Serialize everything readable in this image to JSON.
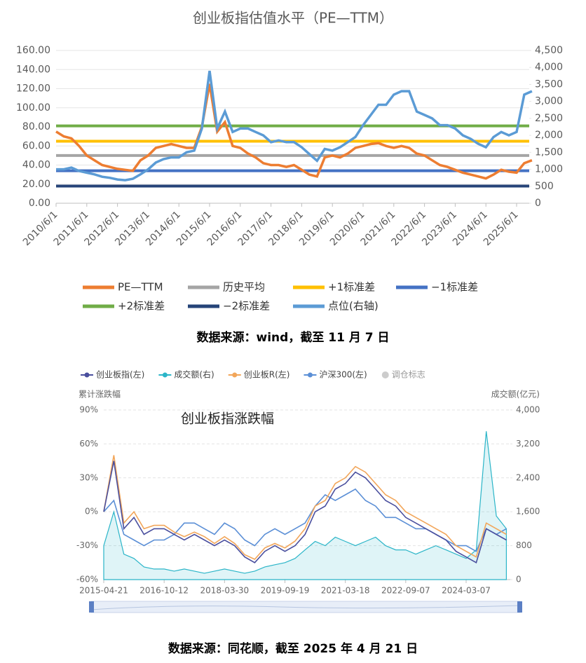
{
  "chart_data": [
    {
      "type": "line",
      "title": "创业板指估值水平（PE—TTM）",
      "source": "数据来源：wind，截至 11 月 7 日",
      "categories": [
        "2010/6/1",
        null,
        null,
        null,
        "2011/6/1",
        null,
        null,
        null,
        "2012/6/1",
        null,
        null,
        null,
        "2013/6/1",
        null,
        null,
        null,
        "2014/6/1",
        null,
        null,
        null,
        "2015/6/1",
        null,
        null,
        null,
        "2016/6/1",
        null,
        null,
        null,
        "2017/6/1",
        null,
        null,
        null,
        "2018/6/1",
        null,
        null,
        null,
        "2019/6/1",
        null,
        null,
        null,
        "2020/6/1",
        null,
        null,
        null,
        "2021/6/1",
        null,
        null,
        null,
        "2022/6/1",
        null,
        null,
        null,
        "2023/6/1",
        null,
        null,
        null,
        "2024/6/1",
        null,
        null,
        null,
        "2025/6/1",
        null,
        null
      ],
      "ylim": [
        0,
        160
      ],
      "yticks": [
        {
          "value": 0,
          "label": "0.00"
        },
        {
          "value": 20,
          "label": "20.00"
        },
        {
          "value": 40,
          "label": "40.00"
        },
        {
          "value": 60,
          "label": "60.00"
        },
        {
          "value": 80,
          "label": "80.00"
        },
        {
          "value": 100,
          "label": "100.00"
        },
        {
          "value": 120,
          "label": "120.00"
        },
        {
          "value": 140,
          "label": "140.00"
        },
        {
          "value": 160,
          "label": "160.00"
        }
      ],
      "y2lim": [
        0,
        4500
      ],
      "y2ticks": [
        0,
        500,
        {
          "value": 1000,
          "label": "1,000"
        },
        {
          "value": 1500,
          "label": "1,500"
        },
        {
          "value": 2000,
          "label": "2,000"
        },
        {
          "value": 2500,
          "label": "2,500"
        },
        {
          "value": 3000,
          "label": "3,000"
        },
        {
          "value": 3500,
          "label": "3,500"
        },
        {
          "value": 4000,
          "label": "4,000"
        },
        {
          "value": 4500,
          "label": "4,500"
        }
      ],
      "series": [
        {
          "name": "PE—TTM",
          "color": "#ed7d31",
          "values": [
            75,
            70,
            68,
            60,
            50,
            45,
            40,
            38,
            36,
            35,
            34,
            45,
            50,
            58,
            60,
            62,
            60,
            58,
            58,
            80,
            125,
            75,
            85,
            60,
            58,
            52,
            48,
            42,
            40,
            40,
            38,
            40,
            35,
            30,
            28,
            48,
            50,
            48,
            52,
            58,
            60,
            62,
            63,
            60,
            58,
            60,
            58,
            52,
            50,
            45,
            40,
            38,
            35,
            32,
            30,
            28,
            26,
            30,
            35,
            33,
            32,
            42,
            45
          ]
        },
        {
          "name": "历史平均",
          "color": "#a5a5a5",
          "value": 50
        },
        {
          "name": "+1标准差",
          "color": "#ffc000",
          "value": 65
        },
        {
          "name": "−1标准差",
          "color": "#4472c4",
          "value": 34
        },
        {
          "name": "+2标准差",
          "color": "#70ad47",
          "value": 81
        },
        {
          "name": "−2标准差",
          "color": "#264478",
          "value": 18
        },
        {
          "name": "点位(右轴)",
          "color": "#5b9bd5",
          "axis": "y2",
          "values": [
            1000,
            1000,
            1050,
            950,
            900,
            850,
            780,
            750,
            700,
            680,
            720,
            850,
            1000,
            1200,
            1300,
            1350,
            1350,
            1500,
            1550,
            2200,
            3900,
            2200,
            2700,
            2100,
            2200,
            2200,
            2100,
            2000,
            1800,
            1850,
            1800,
            1800,
            1650,
            1450,
            1250,
            1600,
            1550,
            1650,
            1800,
            1950,
            2300,
            2600,
            2900,
            2900,
            3200,
            3300,
            3300,
            2700,
            2600,
            2500,
            2300,
            2300,
            2200,
            2000,
            1900,
            1750,
            1650,
            1950,
            2100,
            2000,
            2100,
            3200,
            3300
          ]
        }
      ]
    },
    {
      "type": "line",
      "title": "创业板指涨跌幅",
      "source": "数据来源：同花顺，截至 2025 年 4 月 21 日",
      "ylabel": "累计涨跌幅",
      "y2label": "成交额(亿元)",
      "categories": [
        "2015-04-21",
        null,
        null,
        null,
        null,
        null,
        "2016-10-12",
        null,
        null,
        null,
        null,
        null,
        "2018-03-30",
        null,
        null,
        null,
        null,
        null,
        "2019-09-19",
        null,
        null,
        null,
        null,
        null,
        "2021-03-18",
        null,
        null,
        null,
        null,
        null,
        "2022-09-07",
        null,
        null,
        null,
        null,
        null,
        "2024-03-07",
        null,
        null,
        null,
        null
      ],
      "ylim": [
        -60,
        90
      ],
      "yticks": [
        {
          "value": -60,
          "label": "-60%"
        },
        {
          "value": -30,
          "label": "-30%"
        },
        {
          "value": 0,
          "label": "0%"
        },
        {
          "value": 30,
          "label": "30%"
        },
        {
          "value": 60,
          "label": "60%"
        },
        {
          "value": 90,
          "label": "90%"
        }
      ],
      "y2lim": [
        0,
        4000
      ],
      "y2ticks": [
        0,
        800,
        {
          "value": 1600,
          "label": "1,600"
        },
        {
          "value": 2400,
          "label": "2,400"
        },
        {
          "value": 3200,
          "label": "3,200"
        },
        {
          "value": 4000,
          "label": "4,000"
        }
      ],
      "series": [
        {
          "name": "创业板指(左)",
          "color": "#4a4f9e",
          "values": [
            0,
            45,
            -15,
            -5,
            -20,
            -15,
            -15,
            -20,
            -25,
            -20,
            -25,
            -30,
            -25,
            -30,
            -40,
            -45,
            -35,
            -30,
            -35,
            -30,
            -20,
            0,
            5,
            20,
            25,
            35,
            30,
            20,
            10,
            5,
            -5,
            -10,
            -15,
            -20,
            -25,
            -35,
            -40,
            -45,
            -15,
            -20,
            -25
          ]
        },
        {
          "name": "成交额(右)",
          "color": "#2bb5c8",
          "axis": "y2",
          "values": [
            800,
            1600,
            600,
            500,
            300,
            250,
            250,
            200,
            250,
            200,
            150,
            200,
            250,
            200,
            150,
            200,
            300,
            350,
            400,
            500,
            700,
            900,
            800,
            1000,
            900,
            800,
            900,
            1000,
            800,
            700,
            700,
            600,
            700,
            800,
            700,
            600,
            500,
            700,
            3500,
            1500,
            1200
          ]
        },
        {
          "name": "创业板R(左)",
          "color": "#f2a65a",
          "values": [
            0,
            50,
            -10,
            0,
            -15,
            -12,
            -12,
            -18,
            -22,
            -18,
            -22,
            -28,
            -22,
            -28,
            -38,
            -42,
            -32,
            -28,
            -32,
            -26,
            -15,
            5,
            10,
            25,
            30,
            40,
            35,
            25,
            15,
            10,
            0,
            -5,
            -10,
            -15,
            -20,
            -30,
            -35,
            -40,
            -10,
            -15,
            -20
          ]
        },
        {
          "name": "沪深300(左)",
          "color": "#5b8fd6",
          "values": [
            0,
            10,
            -20,
            -25,
            -30,
            -25,
            -25,
            -20,
            -10,
            -10,
            -15,
            -20,
            -10,
            -15,
            -25,
            -30,
            -20,
            -15,
            -20,
            -15,
            -10,
            5,
            15,
            10,
            15,
            20,
            10,
            5,
            -5,
            -5,
            -10,
            -15,
            -15,
            -20,
            -25,
            -30,
            -30,
            -35,
            -15,
            -20,
            -15
          ]
        }
      ],
      "markers": [
        {
          "name": "调仓标志",
          "color": "#cccccc"
        }
      ]
    }
  ]
}
